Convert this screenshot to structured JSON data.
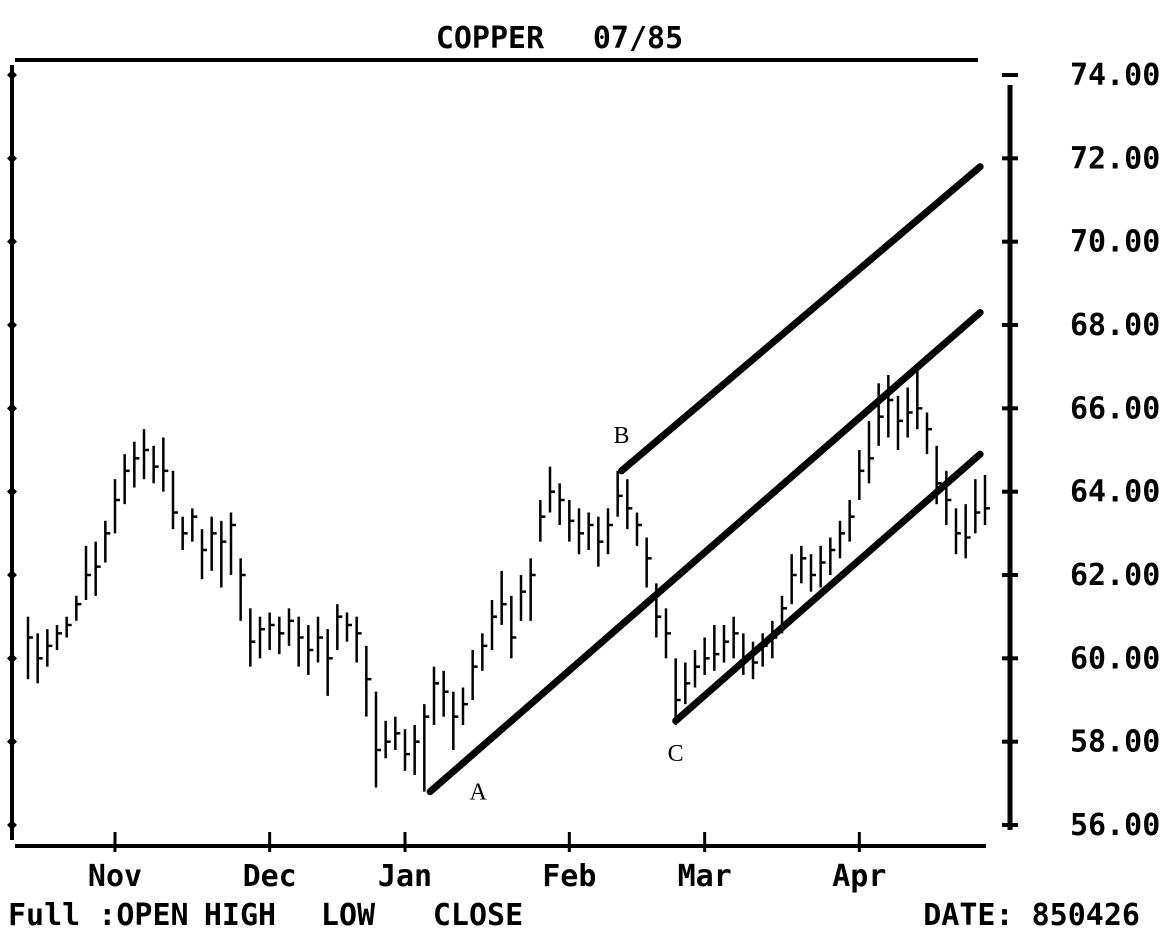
{
  "chart_data": {
    "type": "hlc",
    "title": "COPPER",
    "subtitle": "07/85",
    "footer_prefix": "Full :OPEN",
    "date": "DATE: 850426",
    "categories": [
      null,
      null,
      null,
      null,
      null,
      null,
      null,
      null,
      null,
      "Nov",
      null,
      null,
      null,
      null,
      null,
      null,
      null,
      null,
      null,
      null,
      null,
      null,
      null,
      null,
      null,
      "Dec",
      null,
      null,
      null,
      null,
      null,
      null,
      null,
      null,
      null,
      null,
      null,
      null,
      null,
      "Jan",
      null,
      null,
      null,
      null,
      null,
      null,
      null,
      null,
      null,
      null,
      null,
      null,
      null,
      null,
      null,
      null,
      "Feb",
      null,
      null,
      null,
      null,
      null,
      null,
      null,
      null,
      null,
      null,
      null,
      null,
      null,
      "Mar",
      null,
      null,
      null,
      null,
      null,
      null,
      null,
      null,
      null,
      null,
      null,
      null,
      null,
      null,
      null,
      "Apr",
      null,
      null,
      null,
      null,
      null,
      null,
      null,
      null,
      null,
      null,
      null,
      null,
      null
    ],
    "series": [
      {
        "name": "HIGH",
        "color": "#000000",
        "values": [
          61.0,
          60.6,
          60.7,
          60.8,
          61.0,
          61.5,
          62.7,
          62.8,
          63.3,
          64.3,
          64.9,
          65.2,
          65.5,
          65.1,
          65.3,
          64.5,
          63.4,
          63.6,
          63.1,
          63.4,
          63.3,
          63.5,
          62.4,
          61.2,
          61.0,
          61.1,
          61.0,
          61.2,
          61.0,
          60.8,
          61.0,
          60.7,
          61.3,
          61.1,
          61.0,
          60.3,
          59.2,
          58.5,
          58.6,
          58.3,
          58.4,
          58.9,
          59.8,
          59.7,
          59.2,
          59.3,
          60.2,
          60.6,
          61.4,
          62.1,
          61.5,
          62.0,
          62.4,
          63.8,
          64.6,
          64.2,
          63.8,
          63.6,
          63.5,
          63.4,
          63.6,
          64.5,
          64.3,
          63.5,
          62.9,
          61.8,
          61.2,
          60.0,
          59.9,
          60.2,
          60.5,
          60.8,
          60.8,
          61.0,
          60.6,
          60.4,
          60.6,
          60.9,
          61.5,
          62.5,
          62.7,
          62.5,
          62.7,
          62.9,
          63.3,
          63.8,
          65.0,
          65.7,
          66.6,
          66.8,
          66.3,
          66.5,
          66.9,
          65.9,
          65.1,
          64.5,
          63.6,
          63.7,
          64.3,
          64.4
        ]
      },
      {
        "name": "LOW",
        "color": "#000000",
        "values": [
          59.5,
          59.4,
          59.8,
          60.2,
          60.5,
          60.9,
          61.4,
          61.5,
          62.3,
          63.0,
          63.7,
          64.1,
          64.3,
          64.2,
          64.0,
          63.1,
          62.6,
          62.8,
          61.9,
          62.1,
          61.7,
          62.0,
          60.9,
          59.8,
          60.0,
          60.2,
          60.1,
          60.3,
          59.8,
          59.6,
          59.9,
          59.1,
          60.2,
          60.4,
          59.9,
          58.6,
          56.9,
          57.6,
          57.8,
          57.3,
          57.2,
          56.8,
          58.4,
          58.6,
          57.8,
          58.4,
          59.0,
          59.7,
          60.2,
          60.8,
          60.0,
          60.9,
          60.9,
          62.8,
          63.5,
          63.2,
          62.8,
          62.5,
          62.6,
          62.2,
          62.5,
          63.4,
          63.1,
          62.7,
          61.7,
          60.5,
          60.0,
          58.4,
          58.9,
          59.3,
          59.6,
          59.7,
          59.9,
          60.0,
          59.6,
          59.5,
          59.8,
          60.0,
          60.6,
          61.3,
          61.8,
          61.6,
          61.7,
          62.0,
          62.4,
          62.8,
          63.8,
          64.2,
          65.1,
          65.3,
          65.0,
          65.3,
          65.5,
          64.9,
          63.7,
          63.2,
          62.5,
          62.4,
          63.0,
          63.2
        ]
      },
      {
        "name": "CLOSE",
        "color": "#000000",
        "values": [
          60.5,
          60.0,
          60.3,
          60.6,
          60.8,
          61.3,
          62.0,
          62.2,
          63.0,
          63.8,
          64.5,
          64.8,
          65.0,
          64.6,
          64.5,
          63.5,
          63.0,
          63.4,
          62.6,
          63.0,
          62.8,
          63.2,
          62.0,
          60.4,
          60.7,
          60.8,
          60.6,
          60.9,
          60.5,
          60.2,
          60.5,
          60.0,
          61.0,
          60.8,
          60.6,
          59.5,
          57.8,
          58.0,
          58.2,
          57.7,
          58.0,
          58.6,
          59.4,
          59.2,
          58.6,
          58.9,
          59.8,
          60.3,
          61.0,
          61.3,
          60.5,
          61.6,
          62.0,
          63.4,
          64.0,
          63.8,
          63.3,
          63.0,
          63.2,
          62.8,
          63.2,
          63.9,
          63.6,
          63.2,
          62.4,
          61.0,
          60.6,
          59.0,
          59.4,
          59.8,
          60.0,
          60.1,
          60.4,
          60.6,
          60.0,
          59.9,
          60.3,
          60.5,
          61.2,
          62.0,
          62.4,
          62.0,
          62.3,
          62.6,
          63.0,
          63.4,
          64.5,
          64.8,
          65.8,
          66.2,
          65.7,
          65.9,
          66.0,
          65.5,
          64.2,
          63.8,
          63.0,
          62.9,
          63.5,
          63.6
        ]
      }
    ],
    "trendlines": [
      {
        "label": "A",
        "x": [
          41.6,
          98.5
        ],
        "y": [
          56.8,
          68.3
        ]
      },
      {
        "label": "B",
        "x": [
          61.4,
          98.5
        ],
        "y": [
          64.5,
          71.8
        ]
      },
      {
        "label": "C",
        "x": [
          67,
          98.5
        ],
        "y": [
          58.5,
          64.9
        ]
      }
    ],
    "ylim": [
      56,
      74
    ],
    "yticks": [
      {
        "value": 74,
        "label": "74.00"
      },
      {
        "value": 72,
        "label": "72.00"
      },
      {
        "value": 70,
        "label": "70.00"
      },
      {
        "value": 68,
        "label": "68.00"
      },
      {
        "value": 66,
        "label": "66.00"
      },
      {
        "value": 64,
        "label": "64.00"
      },
      {
        "value": 62,
        "label": "62.00"
      },
      {
        "value": 60,
        "label": "60.00"
      },
      {
        "value": 58,
        "label": "58.00"
      },
      {
        "value": 56,
        "label": "56.00"
      }
    ]
  }
}
